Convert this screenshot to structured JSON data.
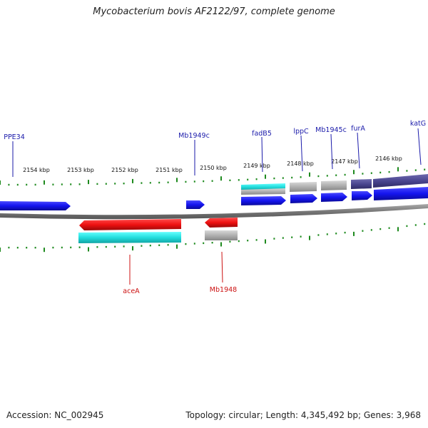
{
  "title": "Mycobacterium bovis AF2122/97, complete genome",
  "footer": {
    "accession": "Accession: NC_002945",
    "topology": "Topology: circular; Length: 4,345,492 bp; Genes: 3,968"
  },
  "colors": {
    "forward_cds": "#1a1aee",
    "reverse_cds": "#ee1111",
    "gene": "#22dddd",
    "other": "#aaaaaa",
    "highlight": "#4a4690",
    "forward_label": "#1a1aaa",
    "reverse_label": "#cc1111",
    "tick": "#1e8a1e",
    "backbone": "#777777"
  },
  "scale": {
    "labels": [
      {
        "text": "2154 kbp"
      },
      {
        "text": "2153 kbp"
      },
      {
        "text": "2152 kbp"
      },
      {
        "text": "2151 kbp"
      },
      {
        "text": "2150 kbp"
      },
      {
        "text": "2149 kbp"
      },
      {
        "text": "2148 kbp"
      },
      {
        "text": "2147 kbp"
      },
      {
        "text": "2146 kbp"
      }
    ]
  },
  "gene_labels": {
    "forward": [
      {
        "text": "PPE34"
      },
      {
        "text": "Mb1949c"
      },
      {
        "text": "fadB5"
      },
      {
        "text": "lppC"
      },
      {
        "text": "Mb1945c"
      },
      {
        "text": "furA"
      },
      {
        "text": "katG"
      }
    ],
    "reverse": [
      {
        "text": "aceA"
      },
      {
        "text": "Mb1948"
      }
    ]
  }
}
